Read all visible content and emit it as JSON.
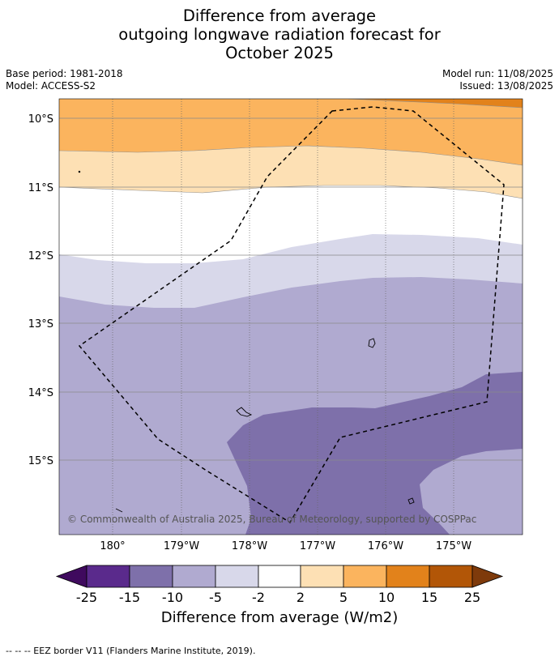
{
  "title": {
    "line1": "Difference from average",
    "line2": "outgoing longwave radiation forecast for",
    "line3": "October 2025"
  },
  "meta": {
    "base_period": "Base period: 1981-2018",
    "model": "Model: ACCESS-S2",
    "model_run": "Model run: 11/08/2025",
    "issued": "Issued: 13/08/2025"
  },
  "map": {
    "lat_labels": [
      "10°S",
      "11°S",
      "12°S",
      "13°S",
      "14°S",
      "15°S"
    ],
    "lon_labels": [
      "180°",
      "179°W",
      "178°W",
      "177°W",
      "176°W",
      "175°W"
    ],
    "copyright": "© Commonwealth of Australia 2025, Bureau of Meteorology, supported by COSPPac"
  },
  "colorbar": {
    "ticks": [
      "-25",
      "-15",
      "-10",
      "-5",
      "-2",
      "2",
      "5",
      "10",
      "15",
      "25"
    ],
    "colors": [
      "#3f0a5e",
      "#5a2a8c",
      "#7e70aa",
      "#b0aad0",
      "#d8d8ea",
      "#ffffff",
      "#fde0b4",
      "#fbb45e",
      "#e2821b",
      "#b25607",
      "#7e3a0b"
    ],
    "label": "Difference from average (W/m2)"
  },
  "footnote": "--  --  -- EEZ border V11 (Flanders Marine Institute, 2019)."
}
